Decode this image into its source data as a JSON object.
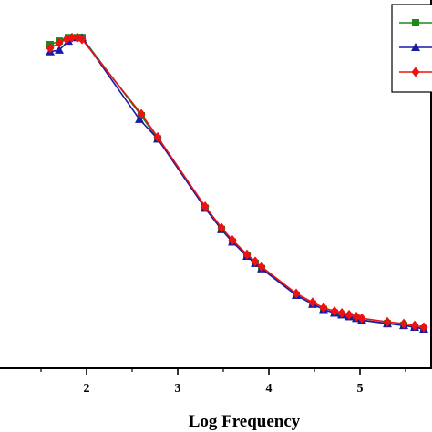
{
  "chart_data": {
    "type": "line",
    "xlabel": "Log Frequency",
    "ylabel": "",
    "title": "",
    "xlim": [
      1.0,
      5.8
    ],
    "ylim": [
      0,
      1
    ],
    "x_ticks": [
      "2",
      "3",
      "4",
      "5"
    ],
    "legend": {
      "placement": "top-right"
    },
    "series": [
      {
        "color": "#1a8a1a",
        "marker": "square",
        "points": [
          [
            1.6,
            0.9
          ],
          [
            1.7,
            0.91
          ],
          [
            1.8,
            0.92
          ],
          [
            1.9,
            0.92
          ],
          [
            1.95,
            0.92
          ],
          [
            2.6,
            0.7
          ],
          [
            2.78,
            0.635
          ],
          [
            3.3,
            0.44
          ],
          [
            3.48,
            0.38
          ],
          [
            3.6,
            0.345
          ],
          [
            3.76,
            0.305
          ],
          [
            3.85,
            0.285
          ],
          [
            3.92,
            0.27
          ],
          [
            4.3,
            0.195
          ],
          [
            4.48,
            0.17
          ],
          [
            4.6,
            0.155
          ],
          [
            4.72,
            0.145
          ],
          [
            4.8,
            0.14
          ],
          [
            4.88,
            0.135
          ],
          [
            4.96,
            0.13
          ],
          [
            5.02,
            0.125
          ],
          [
            5.3,
            0.115
          ],
          [
            5.48,
            0.11
          ],
          [
            5.6,
            0.105
          ],
          [
            5.7,
            0.1
          ]
        ]
      },
      {
        "color": "#1a1aa8",
        "marker": "triangle",
        "points": [
          [
            1.6,
            0.88
          ],
          [
            1.7,
            0.885
          ],
          [
            1.8,
            0.91
          ],
          [
            1.9,
            0.92
          ],
          [
            1.95,
            0.92
          ],
          [
            2.58,
            0.69
          ],
          [
            2.78,
            0.635
          ],
          [
            3.3,
            0.44
          ],
          [
            3.48,
            0.38
          ],
          [
            3.6,
            0.345
          ],
          [
            3.76,
            0.305
          ],
          [
            3.85,
            0.285
          ],
          [
            3.92,
            0.27
          ],
          [
            4.3,
            0.195
          ],
          [
            4.48,
            0.17
          ],
          [
            4.6,
            0.155
          ],
          [
            4.72,
            0.145
          ],
          [
            4.8,
            0.14
          ],
          [
            4.88,
            0.135
          ],
          [
            4.96,
            0.13
          ],
          [
            5.02,
            0.125
          ],
          [
            5.3,
            0.115
          ],
          [
            5.48,
            0.11
          ],
          [
            5.6,
            0.105
          ],
          [
            5.7,
            0.1
          ]
        ]
      },
      {
        "color": "#ee1111",
        "marker": "diamond",
        "points": [
          [
            1.6,
            0.89
          ],
          [
            1.7,
            0.905
          ],
          [
            1.78,
            0.915
          ],
          [
            1.84,
            0.92
          ],
          [
            1.9,
            0.92
          ],
          [
            1.95,
            0.915
          ],
          [
            2.6,
            0.705
          ],
          [
            2.78,
            0.64
          ],
          [
            3.3,
            0.445
          ],
          [
            3.48,
            0.385
          ],
          [
            3.6,
            0.35
          ],
          [
            3.76,
            0.31
          ],
          [
            3.85,
            0.29
          ],
          [
            3.92,
            0.275
          ],
          [
            4.3,
            0.2
          ],
          [
            4.48,
            0.175
          ],
          [
            4.6,
            0.16
          ],
          [
            4.72,
            0.15
          ],
          [
            4.8,
            0.145
          ],
          [
            4.88,
            0.14
          ],
          [
            4.96,
            0.135
          ],
          [
            5.02,
            0.13
          ],
          [
            5.3,
            0.12
          ],
          [
            5.48,
            0.115
          ],
          [
            5.6,
            0.11
          ],
          [
            5.7,
            0.105
          ]
        ]
      }
    ]
  }
}
